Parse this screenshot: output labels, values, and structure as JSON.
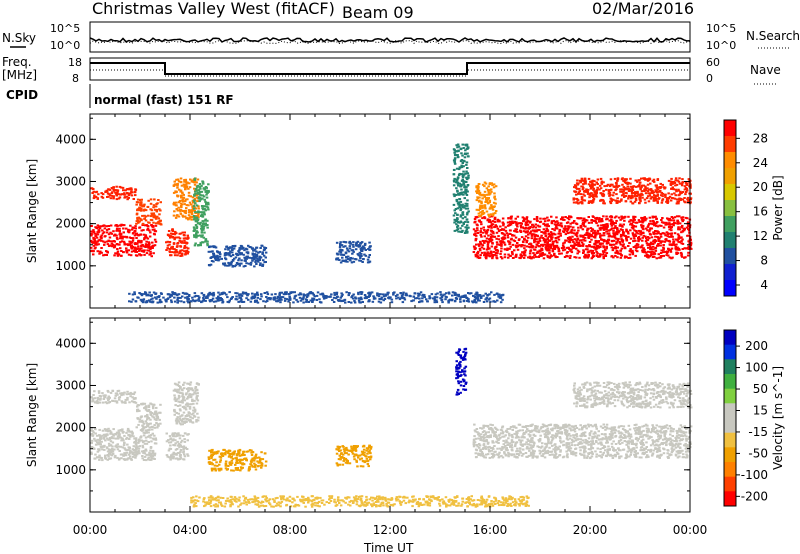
{
  "header": {
    "radar": "Christmas Valley West (fitACF)",
    "beam": "Beam 09",
    "date": "02/Mar/2016"
  },
  "labels": {
    "nsky": "N.Sky",
    "nsearch": "N.Search",
    "freq_line1": "Freq.",
    "freq_line2": "[MHz]",
    "nave": "Nave",
    "cpid": "CPID",
    "cpid_value": "normal (fast) 151 RF"
  },
  "noise_ticks": {
    "left": [
      "10^5",
      "10^0"
    ],
    "right": [
      "10^5",
      "10^0"
    ]
  },
  "freq_ticks": {
    "left": [
      "18",
      "8"
    ],
    "right": [
      "60",
      "0"
    ]
  },
  "chart_data": [
    {
      "type": "heatmap",
      "panel": "power",
      "ylabel": "Slant Range [km]",
      "xlabel": "",
      "ylim": [
        0,
        4600
      ],
      "yticks": [
        "1000",
        "2000",
        "3000",
        "4000"
      ],
      "colorbar": {
        "label": "Power [dB]",
        "ticks": [
          "28",
          "24",
          "20",
          "16",
          "12",
          "8",
          "4"
        ],
        "colors": [
          "#ff0000",
          "#ff3c00",
          "#ff8c00",
          "#f0a000",
          "#d8c800",
          "#88c040",
          "#40a060",
          "#208070",
          "#2050a0",
          "#1020d0",
          "#0000ff"
        ]
      },
      "regions": [
        {
          "t": [
            0.0,
            2.6
          ],
          "r": [
            1250,
            2000
          ],
          "color": "#ff0000"
        },
        {
          "t": [
            0.0,
            1.8
          ],
          "r": [
            2600,
            2900
          ],
          "color": "#ff2000"
        },
        {
          "t": [
            1.8,
            2.8
          ],
          "r": [
            2000,
            2600
          ],
          "color": "#ff4000"
        },
        {
          "t": [
            3.0,
            3.9
          ],
          "r": [
            1250,
            1900
          ],
          "color": "#ff2000"
        },
        {
          "t": [
            3.3,
            4.3
          ],
          "r": [
            2100,
            3100
          ],
          "color": "#ff8000"
        },
        {
          "t": [
            4.1,
            4.7
          ],
          "r": [
            1500,
            3100
          ],
          "color": "#40a060"
        },
        {
          "t": [
            4.7,
            7.0
          ],
          "r": [
            1000,
            1500
          ],
          "color": "#2050a0"
        },
        {
          "t": [
            9.8,
            11.2
          ],
          "r": [
            1100,
            1600
          ],
          "color": "#2050a0"
        },
        {
          "t": [
            14.5,
            15.1
          ],
          "r": [
            1800,
            3900
          ],
          "color": "#208070"
        },
        {
          "t": [
            15.3,
            24.0
          ],
          "r": [
            1200,
            2200
          ],
          "color": "#ff0000"
        },
        {
          "t": [
            15.4,
            16.2
          ],
          "r": [
            2200,
            3000
          ],
          "color": "#ff8c00"
        },
        {
          "t": [
            19.3,
            24.0
          ],
          "r": [
            2500,
            3100
          ],
          "color": "#ff2000"
        },
        {
          "t": [
            1.5,
            16.5
          ],
          "r": [
            150,
            400
          ],
          "color": "#2050a0"
        }
      ]
    },
    {
      "type": "heatmap",
      "panel": "velocity",
      "ylabel": "Slant Range [km]",
      "xlabel": "Time UT",
      "ylim": [
        0,
        4600
      ],
      "yticks": [
        "1000",
        "2000",
        "3000",
        "4000"
      ],
      "xticks": [
        "00:00",
        "04:00",
        "08:00",
        "12:00",
        "16:00",
        "20:00",
        "00:00"
      ],
      "xrange_hours": [
        0,
        24
      ],
      "colorbar": {
        "label": "Velocity [m s^-1]",
        "ticks": [
          "200",
          "100",
          "50",
          "15",
          "-15",
          "-50",
          "-100",
          "-200"
        ],
        "colors": [
          "#0000c0",
          "#0030e0",
          "#208060",
          "#40b040",
          "#80d040",
          "#c8c8c0",
          "#c8c8c0",
          "#f0c040",
          "#f0a000",
          "#ff8000",
          "#ff4000",
          "#ff0000"
        ]
      },
      "regions": [
        {
          "t": [
            0.0,
            2.6
          ],
          "r": [
            1250,
            2000
          ],
          "color": "#c8c8c0"
        },
        {
          "t": [
            0.0,
            1.8
          ],
          "r": [
            2600,
            2900
          ],
          "color": "#c8c8c0"
        },
        {
          "t": [
            1.8,
            2.8
          ],
          "r": [
            2000,
            2600
          ],
          "color": "#c8c8c0"
        },
        {
          "t": [
            3.0,
            3.9
          ],
          "r": [
            1250,
            1900
          ],
          "color": "#c8c8c0"
        },
        {
          "t": [
            3.3,
            4.3
          ],
          "r": [
            2100,
            3100
          ],
          "color": "#c8c8c0"
        },
        {
          "t": [
            4.7,
            7.0
          ],
          "r": [
            1000,
            1500
          ],
          "color": "#f0a000"
        },
        {
          "t": [
            9.8,
            11.2
          ],
          "r": [
            1100,
            1600
          ],
          "color": "#f0a000"
        },
        {
          "t": [
            14.6,
            15.0
          ],
          "r": [
            2800,
            3900
          ],
          "color": "#0000c0"
        },
        {
          "t": [
            15.3,
            24.0
          ],
          "r": [
            1300,
            2100
          ],
          "color": "#c8c8c0"
        },
        {
          "t": [
            19.3,
            24.0
          ],
          "r": [
            2500,
            3100
          ],
          "color": "#c8c8c0"
        },
        {
          "t": [
            4.0,
            17.5
          ],
          "r": [
            150,
            400
          ],
          "color": "#f0c040"
        }
      ]
    }
  ]
}
